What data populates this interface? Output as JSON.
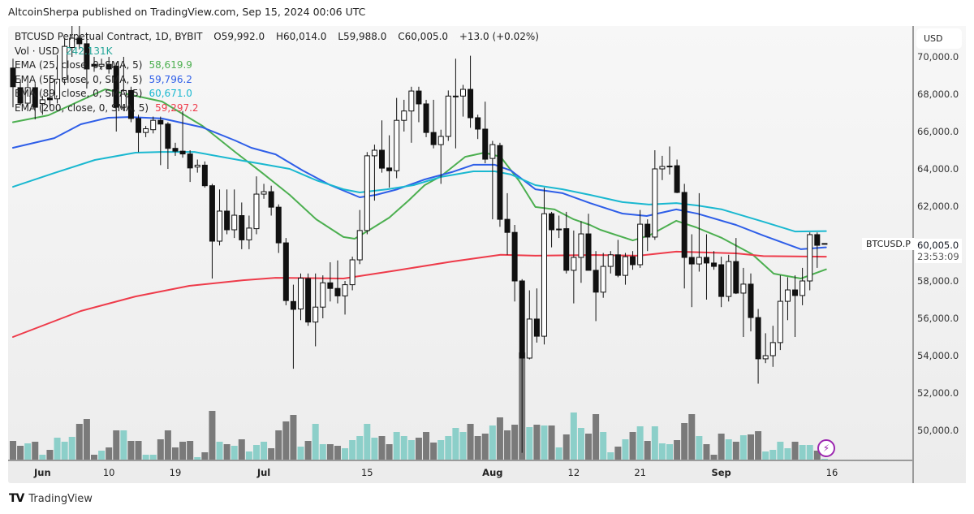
{
  "header": {
    "published": "AltcoinSherpa published on TradingView.com, Sep 15, 2024 00:06 UTC"
  },
  "legend": {
    "symbol": "BTCUSD Perpetual Contract, 1D, BYBIT",
    "o_label": "O",
    "o": "59,992.0",
    "h_label": "H",
    "h": "60,014.0",
    "l_label": "L",
    "l": "59,988.0",
    "c_label": "C",
    "c": "60,005.0",
    "change": "+13.0 (+0.02%)",
    "vol_label": "Vol · USD",
    "vol": "242.131K",
    "ema25_label": "EMA (25, close, 0, SMA, 5)",
    "ema25": "58,619.9",
    "ema55_label": "EMA (55, close, 0, SMA, 5)",
    "ema55": "59,796.2",
    "ema89_label": "EMA (89, close, 0, SMA, 5)",
    "ema89": "60,671.0",
    "ema200_label": "EMA (200, close, 0, SMA, 5)",
    "ema200": "59,297.2"
  },
  "axis": {
    "currency": "USD",
    "symbol_tag": "BTCUSD.P",
    "last_price": "60,005.0",
    "countdown": "23:53:09"
  },
  "footer": {
    "brand": "TradingView",
    "logo_mark": "TV"
  },
  "colors": {
    "up_volume": "#8ccfc9",
    "down_volume": "#7a7a7a",
    "ema25": "#4caf50",
    "ema55": "#2e5ee8",
    "ema89": "#1ab8d0",
    "ema200": "#ee3b4a",
    "volume_text": "#26a69a",
    "bolt": "#9c27b0"
  },
  "icons": {
    "bolt": "⚡"
  },
  "chart_data": {
    "type": "candlestick",
    "title": "BTCUSD Perpetual Contract, 1D, BYBIT",
    "start_date": "2024-05-28",
    "ylim": [
      48000,
      72500
    ],
    "ylabel": "USD",
    "price_ticks": [
      {
        "value": 70000,
        "label": "70,000.0"
      },
      {
        "value": 68000,
        "label": "68,000.0"
      },
      {
        "value": 66000,
        "label": "66,000.0"
      },
      {
        "value": 64000,
        "label": "64,000.0"
      },
      {
        "value": 62000,
        "label": "62,000.0"
      },
      {
        "value": 58000,
        "label": "58,000.0"
      },
      {
        "value": 56000,
        "label": "56,000.0"
      },
      {
        "value": 54000,
        "label": "54,000.0"
      },
      {
        "value": 52000,
        "label": "52,000.0"
      },
      {
        "value": 50000,
        "label": "50,000.0"
      }
    ],
    "time_ticks": [
      {
        "index": 4,
        "label": "Jun",
        "bold": true
      },
      {
        "index": 13,
        "label": "10",
        "bold": false
      },
      {
        "index": 22,
        "label": "19",
        "bold": false
      },
      {
        "index": 34,
        "label": "Jul",
        "bold": true
      },
      {
        "index": 48,
        "label": "15",
        "bold": false
      },
      {
        "index": 65,
        "label": "Aug",
        "bold": true
      },
      {
        "index": 76,
        "label": "12",
        "bold": false
      },
      {
        "index": 85,
        "label": "21",
        "bold": false
      },
      {
        "index": 96,
        "label": "Sep",
        "bold": true
      },
      {
        "index": 111,
        "label": "16",
        "bold": false
      }
    ],
    "candles_ohlc": [
      [
        69400,
        69900,
        67300,
        68400
      ],
      [
        68350,
        68800,
        67400,
        67520
      ],
      [
        67520,
        68600,
        67300,
        68350
      ],
      [
        68350,
        68600,
        66650,
        67300
      ],
      [
        67500,
        67900,
        66900,
        67700
      ],
      [
        67800,
        69000,
        67300,
        67700
      ],
      [
        67750,
        70100,
        67500,
        68800
      ],
      [
        68800,
        71000,
        68500,
        70560
      ],
      [
        70500,
        72000,
        70000,
        71000
      ],
      [
        71000,
        72000,
        70400,
        70700
      ],
      [
        70700,
        71200,
        68300,
        69350
      ],
      [
        69600,
        70000,
        69200,
        69500
      ],
      [
        69500,
        69900,
        69300,
        69600
      ],
      [
        69600,
        70000,
        69100,
        69350
      ],
      [
        69500,
        69700,
        66000,
        67300
      ],
      [
        67300,
        70000,
        67100,
        68200
      ],
      [
        68200,
        68400,
        66500,
        66700
      ],
      [
        66700,
        66900,
        64900,
        65950
      ],
      [
        65950,
        66300,
        65700,
        66150
      ],
      [
        66100,
        66800,
        65900,
        66600
      ],
      [
        66600,
        66800,
        64200,
        66400
      ],
      [
        66400,
        66500,
        64000,
        65100
      ],
      [
        65100,
        65400,
        64700,
        64950
      ],
      [
        64950,
        67100,
        64600,
        64800
      ],
      [
        64800,
        65000,
        63300,
        64050
      ],
      [
        64100,
        64500,
        63800,
        64200
      ],
      [
        64200,
        64400,
        63000,
        63100
      ],
      [
        63100,
        63200,
        58130,
        60130
      ],
      [
        60130,
        62900,
        59900,
        61740
      ],
      [
        61740,
        62900,
        60500,
        60740
      ],
      [
        60740,
        62900,
        60300,
        61520
      ],
      [
        61500,
        62200,
        59700,
        60200
      ],
      [
        60200,
        61500,
        59700,
        60830
      ],
      [
        60800,
        63600,
        60500,
        62650
      ],
      [
        62650,
        63200,
        62400,
        62780
      ],
      [
        62780,
        63100,
        61500,
        61950
      ],
      [
        61950,
        62100,
        59500,
        60040
      ],
      [
        60040,
        60300,
        56700,
        56950
      ],
      [
        56900,
        57800,
        53300,
        56480
      ],
      [
        56500,
        58400,
        55900,
        58150
      ],
      [
        58130,
        58400,
        55600,
        55800
      ],
      [
        55800,
        58400,
        54500,
        56600
      ],
      [
        56600,
        58300,
        56000,
        57900
      ],
      [
        57900,
        59000,
        56900,
        57600
      ],
      [
        57600,
        59100,
        56800,
        57200
      ],
      [
        57200,
        58000,
        56200,
        57800
      ],
      [
        57800,
        59300,
        57500,
        59130
      ],
      [
        59130,
        61800,
        58900,
        60700
      ],
      [
        60700,
        64900,
        60500,
        64700
      ],
      [
        64700,
        65300,
        62300,
        65000
      ],
      [
        65000,
        66600,
        63800,
        64040
      ],
      [
        64050,
        65800,
        63000,
        63900
      ],
      [
        63900,
        67800,
        63500,
        66600
      ],
      [
        66600,
        67700,
        66000,
        67100
      ],
      [
        67100,
        68400,
        65400,
        68170
      ],
      [
        68170,
        68400,
        66500,
        67480
      ],
      [
        67480,
        67700,
        65700,
        65950
      ],
      [
        65950,
        67700,
        65100,
        65300
      ],
      [
        65300,
        66100,
        63200,
        65740
      ],
      [
        65740,
        68200,
        65500,
        67900
      ],
      [
        67900,
        69900,
        65100,
        67900
      ],
      [
        67900,
        68500,
        66800,
        68260
      ],
      [
        68260,
        70060,
        66200,
        66740
      ],
      [
        66740,
        66900,
        65600,
        66130
      ],
      [
        66130,
        67600,
        64300,
        64520
      ],
      [
        64560,
        65500,
        61300,
        65300
      ],
      [
        65250,
        65400,
        60900,
        61300
      ],
      [
        61300,
        62700,
        59400,
        60600
      ],
      [
        60600,
        61000,
        56900,
        58000
      ],
      [
        58000,
        58100,
        48800,
        53870
      ],
      [
        53870,
        57500,
        53800,
        55960
      ],
      [
        55960,
        57600,
        54700,
        55040
      ],
      [
        55040,
        63000,
        54600,
        61600
      ],
      [
        61600,
        61700,
        59800,
        60740
      ],
      [
        60780,
        61500,
        60300,
        60780
      ],
      [
        60800,
        61700,
        58400,
        58570
      ],
      [
        58570,
        60700,
        56800,
        59260
      ],
      [
        59260,
        61200,
        57900,
        60520
      ],
      [
        60520,
        61600,
        58800,
        58570
      ],
      [
        58570,
        59600,
        55850,
        57400
      ],
      [
        57400,
        59500,
        57100,
        58780
      ],
      [
        58780,
        59600,
        58400,
        59400
      ],
      [
        59400,
        60200,
        58200,
        58300
      ],
      [
        58300,
        59500,
        57800,
        59300
      ],
      [
        59300,
        59600,
        58600,
        58870
      ],
      [
        58870,
        61800,
        58700,
        61040
      ],
      [
        61040,
        61300,
        59600,
        60350
      ],
      [
        60350,
        65000,
        60200,
        64000
      ],
      [
        64000,
        64700,
        63400,
        64130
      ],
      [
        64150,
        65200,
        63700,
        64150
      ],
      [
        64170,
        64500,
        62700,
        62740
      ],
      [
        62740,
        63200,
        57600,
        59260
      ],
      [
        59260,
        60500,
        56600,
        58910
      ],
      [
        58910,
        62700,
        58500,
        59260
      ],
      [
        59260,
        60500,
        57000,
        58960
      ],
      [
        58960,
        59600,
        58600,
        58780
      ],
      [
        58870,
        59300,
        56600,
        57170
      ],
      [
        57170,
        59400,
        56900,
        59040
      ],
      [
        59040,
        60300,
        57300,
        57350
      ],
      [
        57350,
        58700,
        55000,
        57830
      ],
      [
        57830,
        58400,
        55300,
        56040
      ],
      [
        56040,
        56500,
        52500,
        53830
      ],
      [
        53830,
        55200,
        53600,
        54000
      ],
      [
        54000,
        55600,
        53400,
        54700
      ],
      [
        54700,
        58300,
        54300,
        56910
      ],
      [
        56910,
        58200,
        55900,
        57520
      ],
      [
        57520,
        58300,
        55000,
        57220
      ],
      [
        57220,
        58700,
        56700,
        58000
      ],
      [
        58000,
        60600,
        57500,
        60480
      ],
      [
        60480,
        60600,
        58700,
        59910
      ],
      [
        59992,
        60014,
        59988,
        60005
      ]
    ],
    "volume_relative": [
      24,
      18,
      21,
      23,
      7,
      13,
      28,
      23,
      29,
      45,
      51,
      7,
      12,
      16,
      37,
      37,
      24,
      24,
      7,
      7,
      26,
      37,
      16,
      23,
      24,
      4,
      10,
      61,
      23,
      20,
      18,
      26,
      11,
      19,
      23,
      15,
      37,
      48,
      56,
      17,
      24,
      45,
      20,
      20,
      18,
      15,
      25,
      30,
      45,
      28,
      30,
      20,
      35,
      30,
      25,
      28,
      35,
      22,
      25,
      30,
      40,
      35,
      45,
      30,
      33,
      43,
      53,
      37,
      44,
      133,
      41,
      44,
      43,
      43,
      16,
      32,
      59,
      40,
      33,
      57,
      35,
      10,
      17,
      26,
      35,
      42,
      24,
      42,
      21,
      20,
      25,
      46,
      57,
      30,
      20,
      7,
      33,
      26,
      23,
      31,
      32,
      36,
      11,
      13,
      23,
      15,
      23,
      19,
      19,
      12,
      2
    ],
    "series": [
      {
        "name": "EMA 25",
        "color_key": "ema25",
        "points": [
          [
            0,
            66500
          ],
          [
            4.8,
            66870
          ],
          [
            12.5,
            68260
          ],
          [
            20.2,
            67610
          ],
          [
            25.7,
            66300
          ],
          [
            30.1,
            64910
          ],
          [
            33.8,
            63780
          ],
          [
            37.5,
            62610
          ],
          [
            41.1,
            61300
          ],
          [
            44.8,
            60350
          ],
          [
            46.3,
            60260
          ],
          [
            48.5,
            60780
          ],
          [
            51,
            61390
          ],
          [
            53.6,
            62300
          ],
          [
            55.8,
            63130
          ],
          [
            58,
            63610
          ],
          [
            61.3,
            64650
          ],
          [
            63.9,
            64870
          ],
          [
            66.1,
            64650
          ],
          [
            68.6,
            63350
          ],
          [
            70.8,
            61960
          ],
          [
            73.4,
            61830
          ],
          [
            76,
            61300
          ],
          [
            78.2,
            61000
          ],
          [
            79.6,
            60740
          ],
          [
            84,
            60170
          ],
          [
            86.2,
            60430
          ],
          [
            89.9,
            61220
          ],
          [
            92.6,
            60870
          ],
          [
            96.1,
            60300
          ],
          [
            100.2,
            59430
          ],
          [
            103.1,
            58390
          ],
          [
            106.8,
            58130
          ],
          [
            110.2,
            58620
          ]
        ]
      },
      {
        "name": "EMA 55",
        "color_key": "ema55",
        "points": [
          [
            0,
            65130
          ],
          [
            5.6,
            65650
          ],
          [
            9.2,
            66390
          ],
          [
            12.9,
            66740
          ],
          [
            15.8,
            66780
          ],
          [
            20.2,
            66700
          ],
          [
            25.7,
            66220
          ],
          [
            30.1,
            65520
          ],
          [
            32.3,
            65130
          ],
          [
            35.6,
            64780
          ],
          [
            39.3,
            63910
          ],
          [
            43,
            63130
          ],
          [
            47,
            62480
          ],
          [
            49.2,
            62610
          ],
          [
            52.1,
            62910
          ],
          [
            55.8,
            63435
          ],
          [
            59.5,
            63830
          ],
          [
            62.4,
            64220
          ],
          [
            65.3,
            64220
          ],
          [
            67.5,
            63910
          ],
          [
            70.8,
            62910
          ],
          [
            74.5,
            62700
          ],
          [
            78.2,
            62170
          ],
          [
            82.6,
            61610
          ],
          [
            85.9,
            61480
          ],
          [
            89.9,
            61830
          ],
          [
            92.8,
            61600
          ],
          [
            98,
            61000
          ],
          [
            101.7,
            60430
          ],
          [
            106.8,
            59700
          ],
          [
            110.2,
            59800
          ]
        ]
      },
      {
        "name": "EMA 89",
        "color_key": "ema89",
        "points": [
          [
            0,
            63040
          ],
          [
            5.6,
            63780
          ],
          [
            11.1,
            64480
          ],
          [
            16.6,
            64870
          ],
          [
            20.2,
            64910
          ],
          [
            24.6,
            64910
          ],
          [
            31.2,
            64435
          ],
          [
            33.8,
            64260
          ],
          [
            37.5,
            64000
          ],
          [
            41.1,
            63390
          ],
          [
            44.8,
            62910
          ],
          [
            47,
            62740
          ],
          [
            50.7,
            62910
          ],
          [
            54.3,
            63130
          ],
          [
            58,
            63570
          ],
          [
            62.4,
            63870
          ],
          [
            65.3,
            63870
          ],
          [
            67.5,
            63700
          ],
          [
            70.8,
            63130
          ],
          [
            74.5,
            62910
          ],
          [
            78.2,
            62610
          ],
          [
            82.6,
            62220
          ],
          [
            86.2,
            62090
          ],
          [
            89.9,
            62170
          ],
          [
            92.8,
            62040
          ],
          [
            96.1,
            61830
          ],
          [
            101.7,
            61170
          ],
          [
            106,
            60650
          ],
          [
            110.2,
            60670
          ]
        ]
      },
      {
        "name": "EMA 200",
        "color_key": "ema200",
        "points": [
          [
            0,
            55000
          ],
          [
            9.2,
            56390
          ],
          [
            16.6,
            57170
          ],
          [
            23.9,
            57740
          ],
          [
            31.2,
            58040
          ],
          [
            35.6,
            58170
          ],
          [
            44.8,
            58130
          ],
          [
            52.1,
            58570
          ],
          [
            59.5,
            59040
          ],
          [
            66.1,
            59400
          ],
          [
            70.8,
            59350
          ],
          [
            78.9,
            59390
          ],
          [
            84.8,
            59350
          ],
          [
            89.9,
            59570
          ],
          [
            98,
            59480
          ],
          [
            101.7,
            59330
          ],
          [
            110.2,
            59300
          ]
        ]
      }
    ]
  }
}
